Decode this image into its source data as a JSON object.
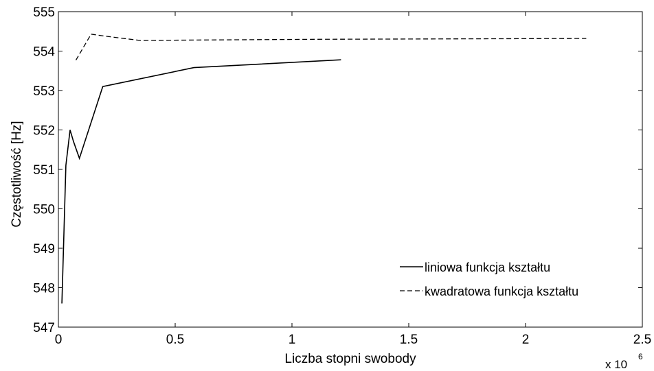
{
  "chart_data": {
    "type": "line",
    "xlabel": "Liczba stopni swobody",
    "ylabel": "Częstotliwość [Hz]",
    "x_multiplier_label": "x 10",
    "x_multiplier_exp": "6",
    "xlim": [
      0,
      2.5
    ],
    "ylim": [
      547,
      555
    ],
    "xticks": [
      "0",
      "0.5",
      "1",
      "1.5",
      "2",
      "2.5"
    ],
    "yticks": [
      "547",
      "548",
      "549",
      "550",
      "551",
      "552",
      "553",
      "554",
      "555"
    ],
    "grid": false,
    "legend_position": "bottom-right",
    "series": [
      {
        "name": "liniowa funkcja kształtu",
        "style": "solid",
        "color": "#000000",
        "x": [
          0.015,
          0.032,
          0.05,
          0.065,
          0.09,
          0.19,
          0.58,
          1.21
        ],
        "y": [
          547.6,
          551.1,
          552.0,
          551.7,
          551.28,
          553.1,
          553.58,
          553.78
        ]
      },
      {
        "name": "kwadratowa funkcja kształtu",
        "style": "dashed",
        "color": "#000000",
        "x": [
          0.075,
          0.14,
          0.2,
          0.35,
          0.58,
          1.1,
          2.26
        ],
        "y": [
          553.77,
          554.43,
          554.38,
          554.27,
          554.28,
          554.3,
          554.32
        ]
      }
    ]
  }
}
